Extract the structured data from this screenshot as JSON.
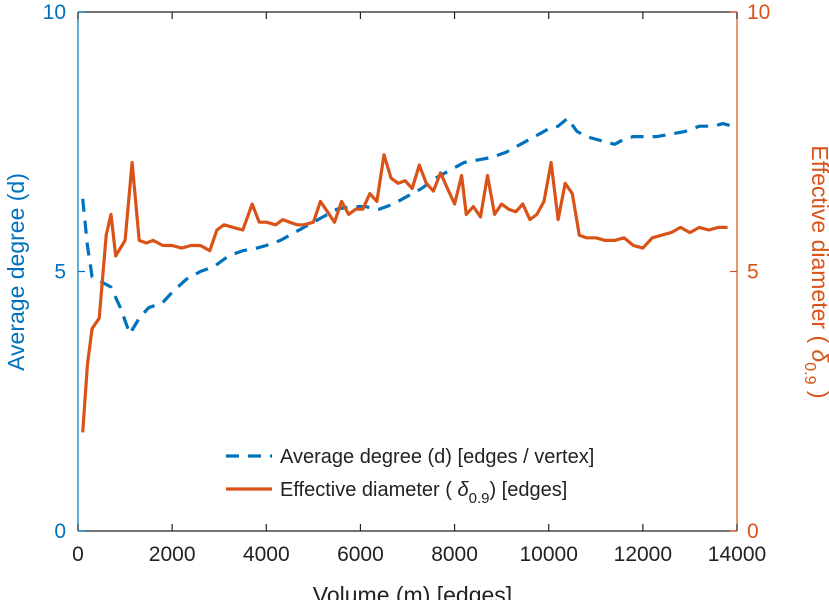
{
  "chart_data": {
    "type": "line",
    "title": "",
    "xlabel": "Volume (m) [edges]",
    "xlim": [
      0,
      14000
    ],
    "xticks": [
      0,
      2000,
      4000,
      6000,
      8000,
      10000,
      12000,
      14000
    ],
    "xtick_labels": [
      "0",
      "2000",
      "4000",
      "6000",
      "8000",
      "10000",
      "12000",
      "14000"
    ],
    "left_axis": {
      "label": "Average degree (d)",
      "ylim": [
        0,
        10
      ],
      "ticks": [
        0,
        5,
        10
      ],
      "tick_labels": [
        "0",
        "5",
        "10"
      ],
      "color": "#0072bd"
    },
    "right_axis": {
      "label_main": "Effective diameter (",
      "label_symbol": "δ",
      "label_subscript": "0.9",
      "label_close": ")",
      "ylim": [
        0,
        10
      ],
      "ticks": [
        0,
        5,
        10
      ],
      "tick_labels": [
        "0",
        "5",
        "10"
      ],
      "color": "#d95319"
    },
    "legend": {
      "position": "bottom-center",
      "entries": [
        {
          "text": "Average degree (d) [edges / vertex]",
          "style": "dashed"
        },
        {
          "text_main": "Effective diameter (",
          "text_symbol": "δ",
          "text_subscript": "0.9",
          "text_close": ") [edges]",
          "style": "solid"
        }
      ]
    },
    "grid": false,
    "series": [
      {
        "name": "Average degree (d) [edges / vertex]",
        "axis": "left",
        "color": "#0072bd",
        "dash": "dashed",
        "x": [
          100,
          200,
          300,
          500,
          700,
          900,
          1100,
          1300,
          1500,
          1800,
          2000,
          2300,
          2600,
          2900,
          3200,
          3500,
          3800,
          4000,
          4300,
          4600,
          4900,
          5200,
          5500,
          5800,
          6100,
          6400,
          6700,
          7000,
          7300,
          7600,
          7900,
          8200,
          8500,
          8800,
          9100,
          9400,
          9700,
          10000,
          10200,
          10400,
          10600,
          10800,
          11000,
          11200,
          11400,
          11600,
          11800,
          12000,
          12300,
          12600,
          12900,
          13200,
          13500,
          13700,
          13900
        ],
        "values": [
          6.4,
          5.5,
          4.9,
          4.8,
          4.7,
          4.3,
          3.8,
          4.1,
          4.3,
          4.4,
          4.6,
          4.85,
          5.0,
          5.1,
          5.3,
          5.4,
          5.45,
          5.5,
          5.6,
          5.75,
          5.9,
          6.05,
          6.2,
          6.25,
          6.25,
          6.2,
          6.3,
          6.45,
          6.6,
          6.8,
          6.95,
          7.1,
          7.15,
          7.2,
          7.3,
          7.45,
          7.6,
          7.75,
          7.8,
          7.95,
          7.7,
          7.6,
          7.55,
          7.5,
          7.45,
          7.55,
          7.6,
          7.6,
          7.6,
          7.65,
          7.7,
          7.8,
          7.8,
          7.85,
          7.8
        ]
      },
      {
        "name": "Effective diameter (δ0.9) [edges]",
        "axis": "right",
        "color": "#d95319",
        "dash": "solid",
        "x": [
          100,
          200,
          300,
          450,
          600,
          700,
          800,
          1000,
          1150,
          1300,
          1450,
          1600,
          1800,
          2000,
          2200,
          2400,
          2600,
          2800,
          2950,
          3100,
          3300,
          3500,
          3700,
          3850,
          4000,
          4200,
          4350,
          4500,
          4650,
          4800,
          5000,
          5150,
          5300,
          5450,
          5600,
          5750,
          5900,
          6050,
          6200,
          6350,
          6500,
          6650,
          6800,
          6950,
          7100,
          7250,
          7400,
          7550,
          7700,
          7850,
          8000,
          8150,
          8250,
          8400,
          8550,
          8700,
          8850,
          9000,
          9150,
          9300,
          9450,
          9600,
          9750,
          9900,
          10050,
          10200,
          10350,
          10500,
          10650,
          10800,
          11000,
          11200,
          11400,
          11600,
          11800,
          12000,
          12200,
          12400,
          12600,
          12800,
          13000,
          13200,
          13400,
          13600,
          13800
        ],
        "values": [
          1.9,
          3.2,
          3.9,
          4.1,
          5.7,
          6.1,
          5.3,
          5.6,
          7.1,
          5.6,
          5.55,
          5.6,
          5.5,
          5.5,
          5.45,
          5.5,
          5.5,
          5.4,
          5.8,
          5.9,
          5.85,
          5.8,
          6.3,
          5.95,
          5.95,
          5.9,
          6.0,
          5.95,
          5.9,
          5.9,
          5.95,
          6.35,
          6.15,
          5.95,
          6.35,
          6.1,
          6.2,
          6.2,
          6.5,
          6.35,
          7.25,
          6.8,
          6.7,
          6.75,
          6.6,
          7.05,
          6.7,
          6.55,
          6.9,
          6.6,
          6.3,
          6.85,
          6.1,
          6.25,
          6.05,
          6.85,
          6.1,
          6.3,
          6.2,
          6.15,
          6.3,
          6.0,
          6.1,
          6.35,
          7.1,
          6.0,
          6.7,
          6.5,
          5.7,
          5.65,
          5.65,
          5.6,
          5.6,
          5.65,
          5.5,
          5.45,
          5.65,
          5.7,
          5.75,
          5.85,
          5.75,
          5.85,
          5.8,
          5.85,
          5.85
        ]
      }
    ]
  },
  "colors": {
    "left_axis": "#0072bd",
    "right_axis": "#d95319",
    "frame": "#222222"
  }
}
